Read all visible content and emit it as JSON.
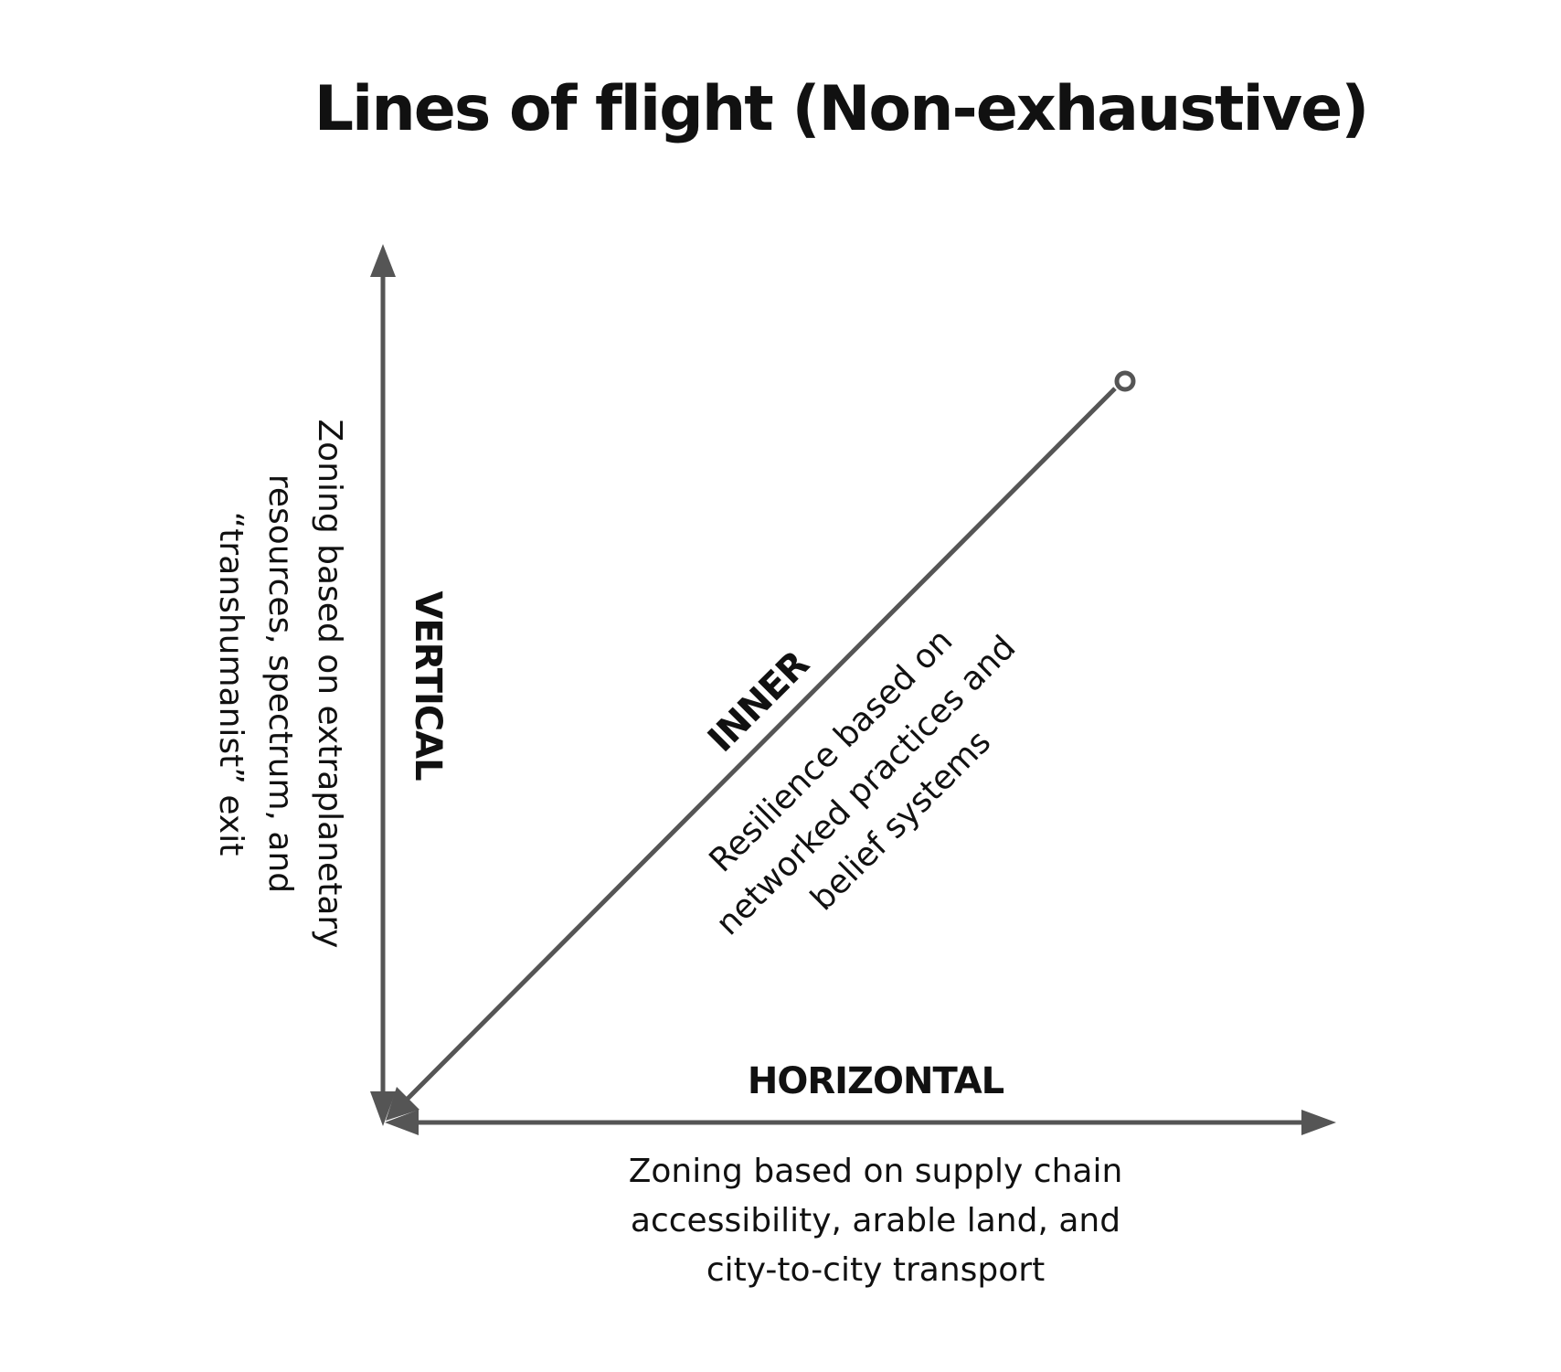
{
  "title": "Lines of flight (Non-exhaustive)",
  "axes": {
    "vertical": {
      "label": "VERTICAL",
      "description": [
        "Zoning  based on extraplanetary",
        "resources, spectrum, and",
        "“transhumanist” exit"
      ]
    },
    "horizontal": {
      "label": "HORIZONTAL",
      "description": [
        "Zoning based on supply chain",
        "accessibility, arable land, and",
        "city-to-city transport"
      ]
    },
    "inner": {
      "label": "INNER",
      "description": [
        "Resilience based on",
        "networked practices and",
        "belief systems"
      ]
    }
  },
  "colors": {
    "axis": "#555555",
    "text": "#111111",
    "background": "#ffffff"
  }
}
